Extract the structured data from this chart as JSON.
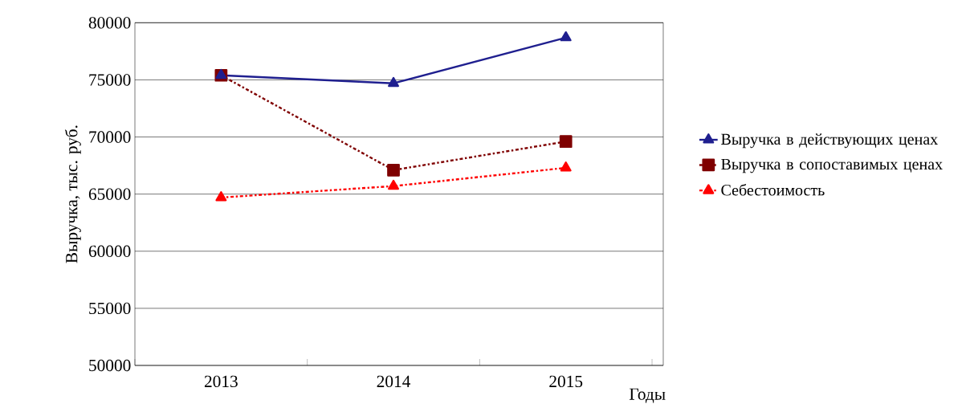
{
  "chart_data": {
    "type": "line",
    "xlabel": "Годы",
    "ylabel": "Выручка, тыс. руб.",
    "categories": [
      "2013",
      "2014",
      "2015"
    ],
    "series": [
      {
        "name": "Выручка в действующих ценах",
        "color": "#1f1f8f",
        "values": [
          75400,
          74700,
          78700
        ],
        "marker": "triangle",
        "line_style": "solid"
      },
      {
        "name": "Выручка в сопоставимых ценах",
        "color": "#7f0000",
        "values": [
          75400,
          67100,
          69600
        ],
        "marker": "square",
        "line_style": "dashed"
      },
      {
        "name": "Себестоимость",
        "color": "#ff0000",
        "values": [
          64700,
          65700,
          67300
        ],
        "marker": "triangle",
        "line_style": "dashed"
      }
    ],
    "ylim": [
      50000,
      80000
    ],
    "yticks": [
      50000,
      55000,
      60000,
      65000,
      70000,
      75000,
      80000
    ],
    "grid": "y",
    "legend": "right"
  }
}
